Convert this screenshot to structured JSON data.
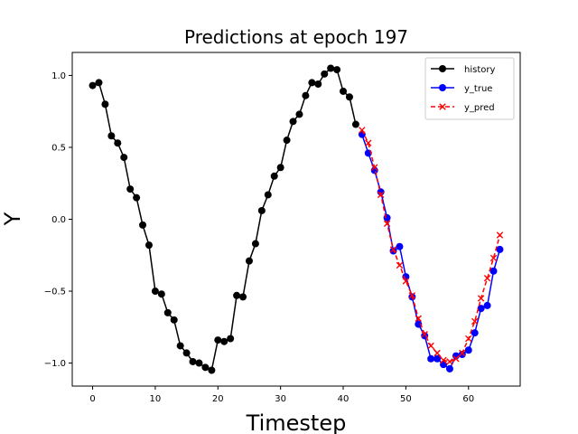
{
  "chart_data": {
    "type": "line",
    "title": "Predictions at epoch 197",
    "xlabel": "Timestep",
    "ylabel": "Y",
    "xlim": [
      -3.25,
      68.25
    ],
    "ylim": [
      -1.16,
      1.16
    ],
    "xticks": [
      0,
      10,
      20,
      30,
      40,
      50,
      60
    ],
    "xtick_labels": [
      "0",
      "10",
      "20",
      "30",
      "40",
      "50",
      "60"
    ],
    "yticks": [
      -1.0,
      -0.5,
      0.0,
      0.5,
      1.0
    ],
    "ytick_labels": [
      "−1.0",
      "−0.5",
      "0.0",
      "0.5",
      "1.0"
    ],
    "grid": false,
    "legend": "top-right",
    "series": [
      {
        "name": "history",
        "color": "#000000",
        "marker": "circle",
        "linestyle": "solid",
        "x": [
          0,
          1,
          2,
          3,
          4,
          5,
          6,
          7,
          8,
          9,
          10,
          11,
          12,
          13,
          14,
          15,
          16,
          17,
          18,
          19,
          20,
          21,
          22,
          23,
          24,
          25,
          26,
          27,
          28,
          29,
          30,
          31,
          32,
          33,
          34,
          35,
          36,
          37,
          38,
          39,
          40,
          41,
          42
        ],
        "values": [
          0.93,
          0.95,
          0.8,
          0.58,
          0.53,
          0.43,
          0.21,
          0.15,
          -0.04,
          -0.18,
          -0.5,
          -0.52,
          -0.65,
          -0.7,
          -0.88,
          -0.93,
          -0.99,
          -1.0,
          -1.03,
          -1.05,
          -0.84,
          -0.85,
          -0.83,
          -0.53,
          -0.54,
          -0.29,
          -0.17,
          0.06,
          0.17,
          0.3,
          0.36,
          0.55,
          0.68,
          0.73,
          0.86,
          0.95,
          0.94,
          1.01,
          1.05,
          1.04,
          0.89,
          0.85,
          0.66
        ]
      },
      {
        "name": "y_true",
        "color": "#0000ff",
        "marker": "circle",
        "linestyle": "solid",
        "x": [
          43,
          44,
          45,
          46,
          47,
          48,
          49,
          50,
          51,
          52,
          53,
          54,
          55,
          56,
          57,
          58,
          59,
          60,
          61,
          62,
          63,
          64,
          65
        ],
        "values": [
          0.59,
          0.46,
          0.34,
          0.19,
          0.01,
          -0.22,
          -0.19,
          -0.4,
          -0.54,
          -0.73,
          -0.81,
          -0.97,
          -0.97,
          -1.01,
          -1.04,
          -0.95,
          -0.94,
          -0.91,
          -0.79,
          -0.62,
          -0.6,
          -0.36,
          -0.21
        ]
      },
      {
        "name": "y_pred",
        "color": "#ff0000",
        "marker": "x",
        "linestyle": "dashed",
        "x": [
          43,
          44,
          45,
          46,
          47,
          48,
          49,
          50,
          51,
          52,
          53,
          54,
          55,
          56,
          57,
          58,
          59,
          60,
          61,
          62,
          63,
          64,
          65
        ],
        "values": [
          0.62,
          0.53,
          0.36,
          0.17,
          -0.03,
          -0.21,
          -0.32,
          -0.43,
          -0.53,
          -0.69,
          -0.8,
          -0.88,
          -0.93,
          -0.98,
          -0.99,
          -0.97,
          -0.93,
          -0.83,
          -0.71,
          -0.55,
          -0.41,
          -0.27,
          -0.11
        ]
      }
    ]
  }
}
